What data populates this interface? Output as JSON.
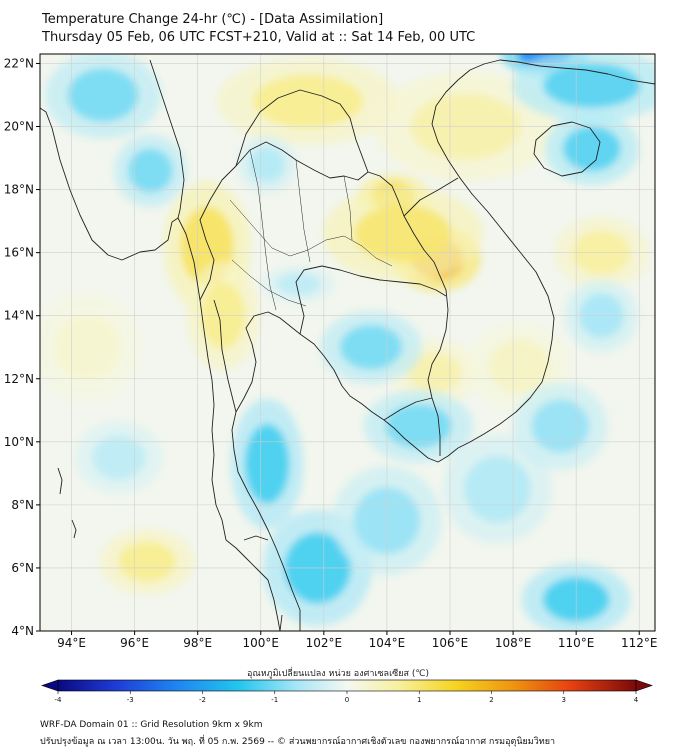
{
  "title": {
    "line1": "Temperature Change 24-hr (℃) - [Data Assimilation]",
    "line2": "Thursday 05 Feb, 06 UTC FCST+210, Valid at :: Sat 14 Feb, 00 UTC"
  },
  "map": {
    "lon_range": [
      93,
      112.5
    ],
    "lat_range": [
      4,
      22.3
    ],
    "lon_ticks": [
      {
        "value": 94,
        "label": "94°E"
      },
      {
        "value": 96,
        "label": "96°E"
      },
      {
        "value": 98,
        "label": "98°E"
      },
      {
        "value": 100,
        "label": "100°E"
      },
      {
        "value": 102,
        "label": "102°E"
      },
      {
        "value": 104,
        "label": "104°E"
      },
      {
        "value": 106,
        "label": "106°E"
      },
      {
        "value": 108,
        "label": "108°E"
      },
      {
        "value": 110,
        "label": "110°E"
      },
      {
        "value": 112,
        "label": "112°E"
      }
    ],
    "lat_ticks": [
      {
        "value": 4,
        "label": "4°N"
      },
      {
        "value": 6,
        "label": "6°N"
      },
      {
        "value": 8,
        "label": "8°N"
      },
      {
        "value": 10,
        "label": "10°N"
      },
      {
        "value": 12,
        "label": "12°N"
      },
      {
        "value": 14,
        "label": "14°N"
      },
      {
        "value": 16,
        "label": "16°N"
      },
      {
        "value": 18,
        "label": "18°N"
      },
      {
        "value": 20,
        "label": "20°N"
      },
      {
        "value": 22,
        "label": "22°N"
      }
    ],
    "field_blobs": [
      {
        "lon": 105.6,
        "lat": 15.8,
        "value": 2.0,
        "rlon": 1.2,
        "rlat": 0.9
      },
      {
        "lon": 104.2,
        "lat": 17.8,
        "value": 1.5,
        "rlon": 1.0,
        "rlat": 0.6
      },
      {
        "lon": 104.5,
        "lat": 16.6,
        "value": 1.0,
        "rlon": 2.2,
        "rlat": 1.3
      },
      {
        "lon": 98.3,
        "lat": 16.2,
        "value": 1.1,
        "rlon": 1.2,
        "rlat": 1.8
      },
      {
        "lon": 98.8,
        "lat": 14.0,
        "value": 0.8,
        "rlon": 1.0,
        "rlat": 1.5
      },
      {
        "lon": 101.5,
        "lat": 20.8,
        "value": 0.8,
        "rlon": 2.5,
        "rlat": 1.2
      },
      {
        "lon": 106.5,
        "lat": 20.0,
        "value": 0.6,
        "rlon": 2.5,
        "rlat": 1.5
      },
      {
        "lon": 110.8,
        "lat": 16.0,
        "value": 0.7,
        "rlon": 1.3,
        "rlat": 1.0
      },
      {
        "lon": 96.4,
        "lat": 6.2,
        "value": 0.8,
        "rlon": 1.3,
        "rlat": 0.9
      },
      {
        "lon": 105.5,
        "lat": 12.2,
        "value": 0.6,
        "rlon": 1.2,
        "rlat": 0.9
      },
      {
        "lon": 108.2,
        "lat": 12.4,
        "value": 0.4,
        "rlon": 1.4,
        "rlat": 1.2
      },
      {
        "lon": 94.5,
        "lat": 13.0,
        "value": 0.3,
        "rlon": 1.5,
        "rlat": 1.5
      },
      {
        "lon": 109.0,
        "lat": 22.3,
        "value": -2.3,
        "rlon": 1.2,
        "rlat": 0.6
      },
      {
        "lon": 110.5,
        "lat": 19.3,
        "value": -1.2,
        "rlon": 1.3,
        "rlat": 1.0
      },
      {
        "lon": 110.5,
        "lat": 21.3,
        "value": -1.2,
        "rlon": 2.2,
        "rlat": 1.0
      },
      {
        "lon": 95.0,
        "lat": 21.0,
        "value": -1.0,
        "rlon": 1.6,
        "rlat": 1.2
      },
      {
        "lon": 96.5,
        "lat": 18.6,
        "value": -1.0,
        "rlon": 1.0,
        "rlat": 1.0
      },
      {
        "lon": 100.2,
        "lat": 18.8,
        "value": -0.6,
        "rlon": 0.8,
        "rlat": 0.8
      },
      {
        "lon": 101.2,
        "lat": 15.0,
        "value": -0.5,
        "rlon": 1.0,
        "rlat": 0.5
      },
      {
        "lon": 103.5,
        "lat": 13.0,
        "value": -1.0,
        "rlon": 1.4,
        "rlat": 1.0
      },
      {
        "lon": 105.0,
        "lat": 10.5,
        "value": -1.0,
        "rlon": 1.5,
        "rlat": 1.0
      },
      {
        "lon": 100.2,
        "lat": 9.3,
        "value": -1.3,
        "rlon": 1.0,
        "rlat": 1.8
      },
      {
        "lon": 101.8,
        "lat": 6.0,
        "value": -1.3,
        "rlon": 1.5,
        "rlat": 1.6
      },
      {
        "lon": 104.0,
        "lat": 7.5,
        "value": -0.8,
        "rlon": 1.5,
        "rlat": 1.5
      },
      {
        "lon": 107.5,
        "lat": 8.5,
        "value": -0.6,
        "rlon": 1.5,
        "rlat": 1.5
      },
      {
        "lon": 109.5,
        "lat": 10.5,
        "value": -0.8,
        "rlon": 1.3,
        "rlat": 1.2
      },
      {
        "lon": 110.8,
        "lat": 14.0,
        "value": -0.7,
        "rlon": 1.0,
        "rlat": 1.0
      },
      {
        "lon": 110.0,
        "lat": 5.0,
        "value": -1.3,
        "rlon": 1.5,
        "rlat": 1.0
      },
      {
        "lon": 95.5,
        "lat": 9.5,
        "value": -0.5,
        "rlon": 1.2,
        "rlat": 1.0
      }
    ]
  },
  "colorbar": {
    "title": "อุณหภูมิเปลี่ยนแปลง หน่วย องศาเซลเซียส (℃)",
    "min": -4,
    "max": 4,
    "ticks": [
      {
        "value": -4,
        "label": "-4"
      },
      {
        "value": -3,
        "label": "-3"
      },
      {
        "value": -2,
        "label": "-2"
      },
      {
        "value": -1,
        "label": "-1"
      },
      {
        "value": 0,
        "label": "0"
      },
      {
        "value": 1,
        "label": "1"
      },
      {
        "value": 2,
        "label": "2"
      },
      {
        "value": 3,
        "label": "3"
      },
      {
        "value": 4,
        "label": "4"
      }
    ],
    "stops": [
      {
        "v": -4.0,
        "c": "#0a0a80"
      },
      {
        "v": -3.2,
        "c": "#1e3cd6"
      },
      {
        "v": -2.4,
        "c": "#1e82f0"
      },
      {
        "v": -1.5,
        "c": "#22c6ee"
      },
      {
        "v": -0.7,
        "c": "#a6e6f6"
      },
      {
        "v": 0.0,
        "c": "#f4f8f2"
      },
      {
        "v": 0.7,
        "c": "#f8f0a0"
      },
      {
        "v": 1.5,
        "c": "#f6d420"
      },
      {
        "v": 2.3,
        "c": "#ee9410"
      },
      {
        "v": 3.1,
        "c": "#e64010"
      },
      {
        "v": 4.0,
        "c": "#7a0a0a"
      }
    ]
  },
  "footer": {
    "line1": "WRF-DA Domain 01 :: Grid Resolution 9km x 9km",
    "line2": "ปรับปรุงข้อมูล ณ เวลา 13:00น. วัน พฤ. ที่ 05 ก.พ. 2569 -- © ส่วนพยากรณ์อากาศเชิงตัวเลข กองพยากรณ์อากาศ กรมอุตุนิยมวิทยา"
  },
  "colors": {
    "grid": "#cfcfcf",
    "boundary": "#222222",
    "frame": "#000000"
  }
}
